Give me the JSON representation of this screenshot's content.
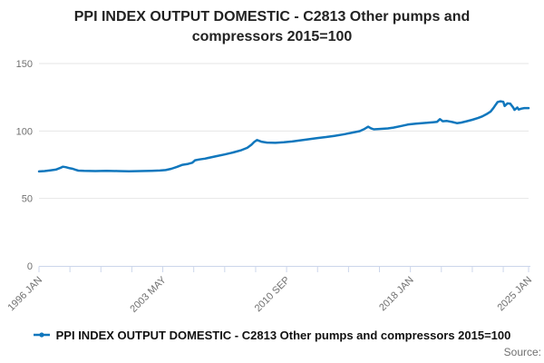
{
  "header": {
    "title": "PPI INDEX OUTPUT DOMESTIC - C2813 Other pumps and compressors 2015=100"
  },
  "chart_data": {
    "type": "line",
    "title": "PPI INDEX OUTPUT DOMESTIC - C2813 Other pumps and compressors 2015=100",
    "xlabel": "",
    "ylabel": "",
    "grid": true,
    "legend_position": "bottom",
    "x_axis": {
      "unit": "months since 1996 JAN",
      "range_months": [
        0,
        348
      ],
      "minor_ticks_months": [
        0,
        22,
        44,
        66,
        88,
        110,
        132,
        154,
        176,
        198,
        220,
        242,
        264,
        286,
        308,
        330,
        348
      ],
      "labeled_ticks": [
        {
          "m": 0,
          "label": "1996 JAN"
        },
        {
          "m": 88,
          "label": "2003 MAY"
        },
        {
          "m": 176,
          "label": "2010 SEP"
        },
        {
          "m": 264,
          "label": "2018 JAN"
        },
        {
          "m": 348,
          "label": "2025 JAN"
        }
      ]
    },
    "y_axis": {
      "min": 0,
      "max": 150,
      "ticks": [
        0,
        50,
        100,
        150
      ]
    },
    "series": [
      {
        "name": "PPI INDEX OUTPUT DOMESTIC - C2813 Other pumps and compressors 2015=100",
        "color": "#1077bd",
        "points": [
          [
            0,
            70.0
          ],
          [
            4,
            70.3
          ],
          [
            8,
            70.8
          ],
          [
            12,
            71.4
          ],
          [
            15,
            72.6
          ],
          [
            17,
            73.5
          ],
          [
            19,
            73.2
          ],
          [
            22,
            72.4
          ],
          [
            24,
            72.0
          ],
          [
            26,
            71.2
          ],
          [
            28,
            70.6
          ],
          [
            32,
            70.4
          ],
          [
            40,
            70.3
          ],
          [
            48,
            70.5
          ],
          [
            56,
            70.3
          ],
          [
            64,
            70.1
          ],
          [
            72,
            70.3
          ],
          [
            80,
            70.5
          ],
          [
            86,
            70.7
          ],
          [
            90,
            71.0
          ],
          [
            94,
            72.0
          ],
          [
            98,
            73.4
          ],
          [
            102,
            74.9
          ],
          [
            106,
            75.6
          ],
          [
            109,
            76.5
          ],
          [
            111,
            78.3
          ],
          [
            114,
            78.9
          ],
          [
            118,
            79.5
          ],
          [
            120,
            80.0
          ],
          [
            126,
            81.3
          ],
          [
            132,
            82.6
          ],
          [
            138,
            84.1
          ],
          [
            144,
            85.8
          ],
          [
            148,
            87.5
          ],
          [
            151,
            89.8
          ],
          [
            153,
            91.9
          ],
          [
            155,
            93.3
          ],
          [
            158,
            92.1
          ],
          [
            162,
            91.4
          ],
          [
            168,
            91.2
          ],
          [
            174,
            91.6
          ],
          [
            180,
            92.2
          ],
          [
            186,
            93.1
          ],
          [
            192,
            93.9
          ],
          [
            198,
            94.8
          ],
          [
            204,
            95.5
          ],
          [
            210,
            96.4
          ],
          [
            216,
            97.4
          ],
          [
            222,
            98.6
          ],
          [
            228,
            99.9
          ],
          [
            231,
            101.3
          ],
          [
            234,
            103.2
          ],
          [
            236,
            102.0
          ],
          [
            238,
            101.2
          ],
          [
            242,
            101.5
          ],
          [
            248,
            101.9
          ],
          [
            252,
            102.5
          ],
          [
            258,
            103.8
          ],
          [
            262,
            104.7
          ],
          [
            264,
            105.0
          ],
          [
            268,
            105.4
          ],
          [
            272,
            105.8
          ],
          [
            276,
            106.1
          ],
          [
            280,
            106.5
          ],
          [
            283,
            106.8
          ],
          [
            285,
            108.8
          ],
          [
            287,
            107.2
          ],
          [
            290,
            107.4
          ],
          [
            294,
            106.6
          ],
          [
            297,
            105.8
          ],
          [
            300,
            106.2
          ],
          [
            304,
            107.2
          ],
          [
            308,
            108.3
          ],
          [
            312,
            109.6
          ],
          [
            315,
            110.8
          ],
          [
            318,
            112.4
          ],
          [
            321,
            114.4
          ],
          [
            323,
            117.0
          ],
          [
            325,
            120.0
          ],
          [
            326,
            121.5
          ],
          [
            328,
            122.0
          ],
          [
            330,
            121.6
          ],
          [
            331,
            118.5
          ],
          [
            333,
            120.5
          ],
          [
            335,
            120.2
          ],
          [
            337,
            117.5
          ],
          [
            338,
            115.6
          ],
          [
            340,
            117.4
          ],
          [
            341,
            115.9
          ],
          [
            343,
            116.6
          ],
          [
            345,
            117.0
          ],
          [
            348,
            117.0
          ]
        ]
      }
    ]
  },
  "legend": {
    "label": "PPI INDEX OUTPUT DOMESTIC - C2813 Other pumps and compressors 2015=100"
  },
  "footer": {
    "source_label": "Source:"
  },
  "colors": {
    "line": "#1077bd",
    "gridline": "#e6e6e6",
    "axis": "#ccd6eb",
    "tick_label": "#707070",
    "title_text": "#222222"
  }
}
